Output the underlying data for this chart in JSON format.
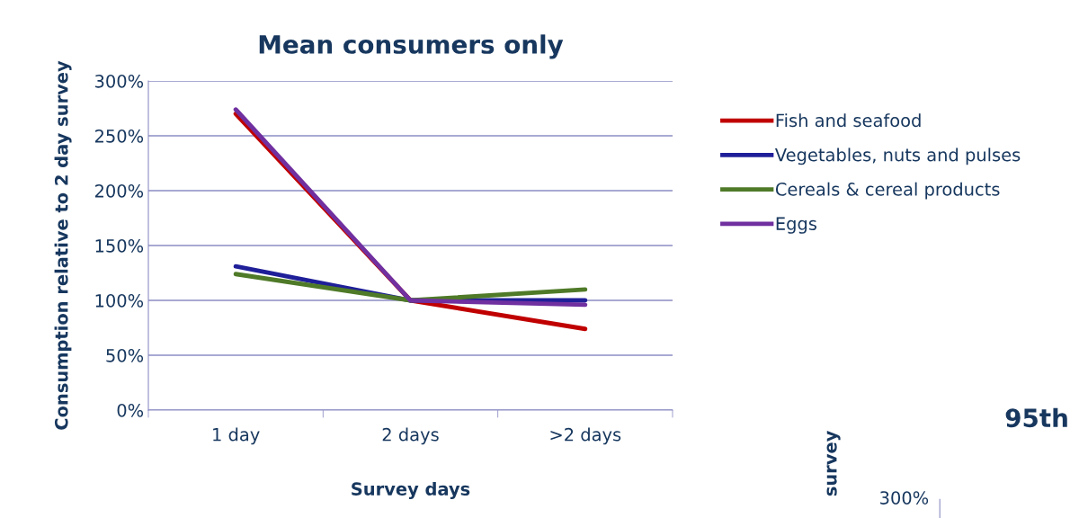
{
  "chart_data": [
    {
      "type": "line",
      "title": "Mean consumers only",
      "xlabel": "Survey days",
      "ylabel": "Consumption relative to 2 day survey",
      "categories": [
        "1 day",
        "2 days",
        ">2 days"
      ],
      "series": [
        {
          "name": "Fish and seafood",
          "color": "#c00000",
          "values": [
            270,
            100,
            74
          ]
        },
        {
          "name": "Vegetables, nuts and pulses",
          "color": "#1f1f99",
          "values": [
            131,
            100,
            100
          ]
        },
        {
          "name": "Cereals & cereal products",
          "color": "#4f7a28",
          "values": [
            124,
            100,
            110
          ]
        },
        {
          "name": "Eggs",
          "color": "#7030a0",
          "values": [
            274,
            100,
            96
          ]
        }
      ],
      "ylim": [
        0,
        300
      ],
      "yticks": [
        {
          "value": 0,
          "label": "0%"
        },
        {
          "value": 50,
          "label": "50%"
        },
        {
          "value": 100,
          "label": "100%"
        },
        {
          "value": 150,
          "label": "150%"
        },
        {
          "value": 200,
          "label": "200%"
        },
        {
          "value": 250,
          "label": "250%"
        },
        {
          "value": 300,
          "label": "300%"
        }
      ],
      "grid": "y",
      "legend": "right",
      "marker": "none",
      "line_style": "solid"
    },
    {
      "type": "other",
      "title": "95th",
      "ylabel": "survey",
      "annotations": [
        "300%"
      ]
    }
  ]
}
